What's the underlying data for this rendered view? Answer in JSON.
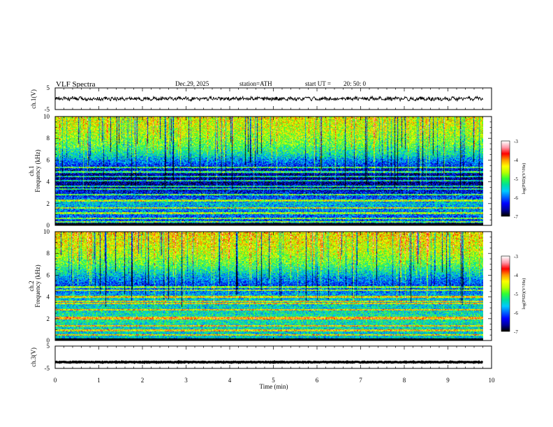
{
  "header": {
    "title": "VLF  Spectra",
    "date": "Dec.29, 2025",
    "station": "station=ATH",
    "start_label": "start  UT  =",
    "start_time": "20: 50: 0"
  },
  "colors": {
    "frame": "#000000",
    "background": "#ffffff",
    "colormap": [
      "#000000",
      "#0000a0",
      "#0000ff",
      "#0066ff",
      "#00ccff",
      "#00e0a0",
      "#33ff33",
      "#bbff00",
      "#ffff00",
      "#ff9900",
      "#ff0000",
      "#ff99aa",
      "#ffffff"
    ]
  },
  "chart_data": [
    {
      "name": "ch1-waveform",
      "type": "line",
      "ylabel": "ch.1(V)",
      "ylim": [
        -5,
        5
      ],
      "yticks": [
        "5",
        "-5"
      ],
      "x_range_min": [
        0,
        9.8
      ],
      "typical_amplitude_V": 0.8
    },
    {
      "name": "ch1-spectrogram",
      "type": "heatmap",
      "ylabel": "ch.1\nFrequency (kHz)",
      "ylim": [
        0,
        10
      ],
      "yticks": [
        "0",
        "2",
        "4",
        "6",
        "8",
        "10"
      ],
      "x_range_min": [
        0,
        9.8
      ],
      "colorbar": {
        "label": "log(PSD)(V²/Hz)",
        "range": [
          -7,
          -3
        ],
        "ticks": [
          "-3",
          "-4",
          "-5",
          "-6",
          "-7"
        ]
      },
      "bands_kHz": [
        0.3,
        0.6,
        1.1,
        1.6,
        2.2,
        2.3,
        2.8,
        3.3,
        3.6,
        4.1,
        4.5,
        4.9,
        5.3
      ],
      "level_profile": [
        {
          "f": 0.0,
          "v": -6.2
        },
        {
          "f": 1.0,
          "v": -6.0
        },
        {
          "f": 2.0,
          "v": -5.6
        },
        {
          "f": 2.5,
          "v": -6.1
        },
        {
          "f": 3.5,
          "v": -6.6
        },
        {
          "f": 4.5,
          "v": -6.7
        },
        {
          "f": 5.5,
          "v": -6.2
        },
        {
          "f": 6.5,
          "v": -5.4
        },
        {
          "f": 7.5,
          "v": -4.9
        },
        {
          "f": 8.5,
          "v": -4.6
        },
        {
          "f": 10.0,
          "v": -4.4
        }
      ]
    },
    {
      "name": "ch2-spectrogram",
      "type": "heatmap",
      "ylabel": "ch.2\nFrequency (kHz)",
      "ylim": [
        0,
        10
      ],
      "yticks": [
        "0",
        "2",
        "4",
        "6",
        "8",
        "10"
      ],
      "x_range_min": [
        0,
        9.8
      ],
      "colorbar": {
        "label": "log(PSD)(V²/Hz)",
        "range": [
          -7,
          -3
        ],
        "ticks": [
          "-3",
          "-4",
          "-5",
          "-6",
          "-7"
        ]
      },
      "bands_kHz": [
        0.5,
        0.9,
        1.3,
        2.0,
        2.1,
        2.8,
        3.4,
        3.6,
        4.0,
        4.6,
        4.9
      ],
      "level_profile": [
        {
          "f": 0.0,
          "v": -5.6
        },
        {
          "f": 1.0,
          "v": -5.5
        },
        {
          "f": 2.0,
          "v": -5.3
        },
        {
          "f": 3.0,
          "v": -5.5
        },
        {
          "f": 4.0,
          "v": -5.6
        },
        {
          "f": 5.0,
          "v": -6.2
        },
        {
          "f": 6.0,
          "v": -5.6
        },
        {
          "f": 7.0,
          "v": -5.0
        },
        {
          "f": 8.0,
          "v": -4.6
        },
        {
          "f": 9.0,
          "v": -4.4
        },
        {
          "f": 10.0,
          "v": -4.3
        }
      ]
    },
    {
      "name": "ch3-waveform",
      "type": "line",
      "ylabel": "ch.3(V)",
      "ylim": [
        -5,
        5
      ],
      "yticks": [
        "5",
        "-5"
      ],
      "x_range_min": [
        0,
        9.8
      ],
      "offset_V": -2.2,
      "typical_amplitude_V": 0.15
    }
  ],
  "xaxis": {
    "label": "Time  (min)",
    "range": [
      0,
      10
    ],
    "ticks": [
      "0",
      "1",
      "2",
      "3",
      "4",
      "5",
      "6",
      "7",
      "8",
      "9",
      "10"
    ]
  }
}
